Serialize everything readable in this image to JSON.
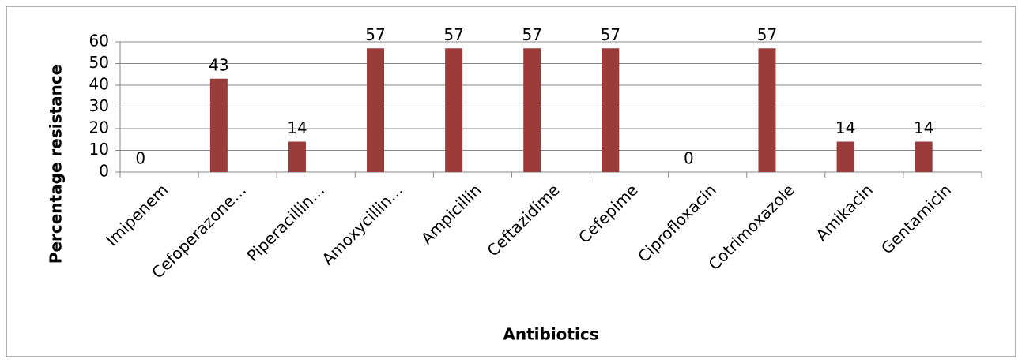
{
  "chart_data": {
    "type": "bar",
    "categories": [
      "Imipenem",
      "Cefoperazone…",
      "Piperacillin…",
      "Amoxycillin…",
      "Ampicillin",
      "Ceftazidime",
      "Cefepime",
      "Ciprofloxacin",
      "Cotrimoxazole",
      "Amikacin",
      "Gentamicin"
    ],
    "values": [
      0,
      43,
      14,
      57,
      57,
      57,
      57,
      0,
      57,
      14,
      14
    ],
    "color": "#9b3c3a",
    "x_label": "Antibiotics",
    "y_label": "Percentage  resistance",
    "ylim": [
      0,
      60
    ],
    "yticks": [
      0,
      10,
      20,
      30,
      40,
      50,
      60
    ],
    "grid": true
  }
}
